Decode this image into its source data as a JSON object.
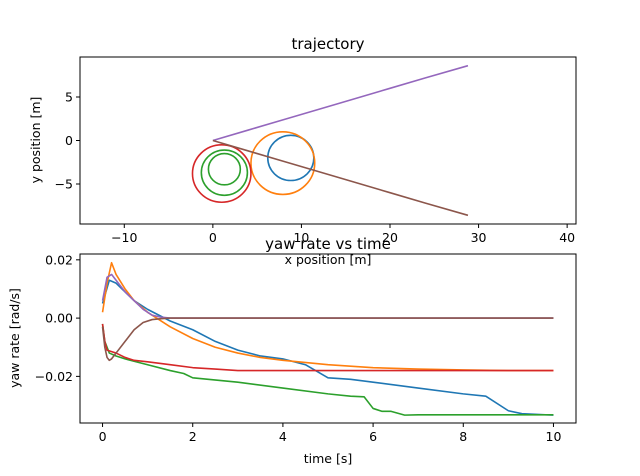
{
  "chart_data": [
    {
      "type": "line",
      "title": "trajectory",
      "xlabel": "x position [m]",
      "ylabel": "y position [m]",
      "xlim": [
        -15,
        41
      ],
      "ylim": [
        -9.6,
        9.6
      ],
      "xticks": [
        -10,
        0,
        10,
        20,
        30,
        40
      ],
      "yticks": [
        -5,
        0,
        5
      ],
      "xtick_labels": [
        "−10",
        "0",
        "10",
        "20",
        "30",
        "40"
      ],
      "ytick_labels": [
        "−5",
        "0",
        "5"
      ],
      "grid": false,
      "series": [
        {
          "color": "#1f77b4",
          "shape": "circle",
          "center": [
            8.8,
            -2.0
          ],
          "radius": 2.6
        },
        {
          "color": "#ff7f0e",
          "shape": "circle",
          "center": [
            7.9,
            -2.6
          ],
          "radius": 3.6
        },
        {
          "color": "#2ca02c",
          "shape": "circle",
          "center": [
            1.3,
            -3.7
          ],
          "radius": 2.6
        },
        {
          "color": "#2ca02c",
          "shape": "circle",
          "center": [
            1.3,
            -3.3
          ],
          "radius": 1.8
        },
        {
          "color": "#d62728",
          "shape": "circle",
          "center": [
            1.0,
            -3.8
          ],
          "radius": 3.3
        },
        {
          "color": "#9467bd",
          "shape": "polyline",
          "x": [
            0,
            4,
            8,
            14,
            20,
            24,
            28.8
          ],
          "y": [
            0,
            1.2,
            2.4,
            4.2,
            6.0,
            7.2,
            8.6
          ]
        },
        {
          "color": "#8c564b",
          "shape": "polyline",
          "x": [
            0,
            4,
            8,
            14,
            20,
            24,
            28.8
          ],
          "y": [
            0,
            -1.2,
            -2.4,
            -4.2,
            -6.0,
            -7.2,
            -8.6
          ]
        }
      ]
    },
    {
      "type": "line",
      "title": "yaw rate vs time",
      "xlabel": "time [s]",
      "ylabel": "yaw rate [rad/s]",
      "xlim": [
        -0.5,
        10.5
      ],
      "ylim": [
        -0.036,
        0.022
      ],
      "xticks": [
        0,
        2,
        4,
        6,
        8,
        10
      ],
      "yticks": [
        -0.02,
        0.0,
        0.02
      ],
      "xtick_labels": [
        "0",
        "2",
        "4",
        "6",
        "8",
        "10"
      ],
      "ytick_labels": [
        "−0.02",
        "0.00",
        "0.02"
      ],
      "grid": false,
      "series": [
        {
          "color": "#1f77b4",
          "x": [
            0,
            0.15,
            0.3,
            0.5,
            0.7,
            1.0,
            1.5,
            2.0,
            2.5,
            3.0,
            3.5,
            4.0,
            4.5,
            5.0,
            5.5,
            6.0,
            7.0,
            8.0,
            8.5,
            9.0,
            9.3,
            10.0
          ],
          "y": [
            0.005,
            0.013,
            0.012,
            0.009,
            0.006,
            0.003,
            -0.001,
            -0.004,
            -0.008,
            -0.011,
            -0.013,
            -0.014,
            -0.016,
            -0.0205,
            -0.021,
            -0.022,
            -0.024,
            -0.026,
            -0.0268,
            -0.0318,
            -0.0328,
            -0.0333
          ]
        },
        {
          "color": "#ff7f0e",
          "x": [
            0,
            0.1,
            0.2,
            0.3,
            0.5,
            0.7,
            1.0,
            1.5,
            2.0,
            2.5,
            3.0,
            3.5,
            4.0,
            5.0,
            6.0,
            7.0,
            8.0,
            9.0,
            10.0
          ],
          "y": [
            0.002,
            0.012,
            0.019,
            0.015,
            0.01,
            0.006,
            0.002,
            -0.003,
            -0.007,
            -0.01,
            -0.012,
            -0.0135,
            -0.0145,
            -0.016,
            -0.017,
            -0.0175,
            -0.0178,
            -0.018,
            -0.018
          ]
        },
        {
          "color": "#2ca02c",
          "x": [
            0,
            0.05,
            0.15,
            0.3,
            0.5,
            1.0,
            1.5,
            1.8,
            2.0,
            3.0,
            4.0,
            5.0,
            5.5,
            5.8,
            6.0,
            6.2,
            6.4,
            6.7,
            7.0,
            8.0,
            9.0,
            10.0
          ],
          "y": [
            -0.002,
            -0.008,
            -0.012,
            -0.013,
            -0.014,
            -0.016,
            -0.018,
            -0.019,
            -0.0205,
            -0.022,
            -0.024,
            -0.026,
            -0.0268,
            -0.027,
            -0.031,
            -0.032,
            -0.032,
            -0.0333,
            -0.0332,
            -0.0332,
            -0.0332,
            -0.0332
          ]
        },
        {
          "color": "#d62728",
          "x": [
            0,
            0.05,
            0.1,
            0.2,
            0.3,
            0.5,
            0.7,
            1.0,
            1.5,
            2.0,
            2.5,
            3.0,
            4.0,
            5.0,
            6.0,
            7.0,
            8.0,
            9.0,
            10.0
          ],
          "y": [
            -0.002,
            -0.008,
            -0.011,
            -0.0115,
            -0.012,
            -0.0135,
            -0.0145,
            -0.015,
            -0.016,
            -0.017,
            -0.0175,
            -0.018,
            -0.018,
            -0.018,
            -0.018,
            -0.018,
            -0.018,
            -0.018,
            -0.018
          ]
        },
        {
          "color": "#9467bd",
          "x": [
            0,
            0.1,
            0.2,
            0.3,
            0.5,
            0.7,
            0.9,
            1.1,
            1.3,
            1.5,
            2.0,
            3.0,
            4.0,
            5.0,
            6.0,
            7.0,
            8.0,
            9.0,
            10.0
          ],
          "y": [
            0.006,
            0.014,
            0.015,
            0.013,
            0.009,
            0.006,
            0.003,
            0.001,
            0.0003,
            0.0,
            0.0,
            0.0,
            0.0,
            0.0,
            0.0,
            0.0,
            0.0,
            0.0,
            0.0
          ]
        },
        {
          "color": "#8c564b",
          "x": [
            0,
            0.05,
            0.1,
            0.15,
            0.2,
            0.3,
            0.5,
            0.7,
            0.9,
            1.1,
            1.3,
            1.5,
            2.0,
            3.0,
            4.0,
            5.0,
            6.0,
            7.0,
            8.0,
            9.0,
            10.0
          ],
          "y": [
            -0.003,
            -0.01,
            -0.0135,
            -0.0145,
            -0.014,
            -0.012,
            -0.008,
            -0.004,
            -0.0015,
            -0.0005,
            -0.0002,
            0.0,
            0.0,
            0.0,
            0.0,
            0.0,
            0.0,
            0.0,
            0.0,
            0.0,
            0.0
          ]
        }
      ]
    }
  ]
}
